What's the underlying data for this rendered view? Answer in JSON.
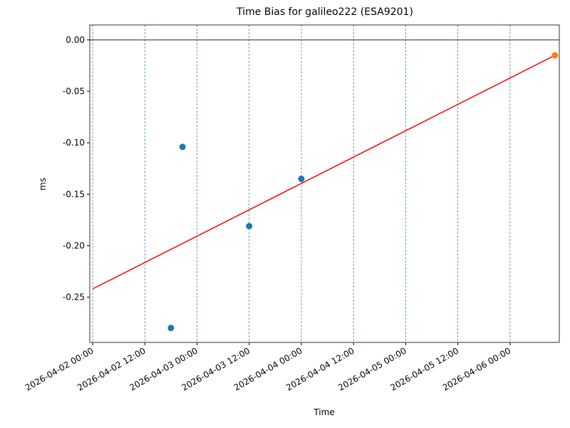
{
  "chart_data": {
    "type": "scatter",
    "title": "Time Bias for galileo222 (ESA9201)",
    "xlabel": "Time",
    "ylabel": "ms",
    "xlim": [
      "2026-04-01 23:20",
      "2026-04-06 11:20"
    ],
    "ylim": [
      -0.294,
      0.0145
    ],
    "xticks": [
      "2026-04-02 00:00",
      "2026-04-02 12:00",
      "2026-04-03 00:00",
      "2026-04-03 12:00",
      "2026-04-04 00:00",
      "2026-04-04 12:00",
      "2026-04-05 00:00",
      "2026-04-05 12:00",
      "2026-04-06 00:00"
    ],
    "yticks": [
      {
        "value": 0,
        "label": "0.00"
      },
      {
        "value": -0.05,
        "label": "-0.05"
      },
      {
        "value": -0.1,
        "label": "-0.10"
      },
      {
        "value": -0.15,
        "label": "-0.15"
      },
      {
        "value": -0.2,
        "label": "-0.20"
      },
      {
        "value": -0.25,
        "label": "-0.25"
      }
    ],
    "xgrid": true,
    "hline": 0,
    "series": [
      {
        "mode": "markers",
        "color": "#1f77b4",
        "x": [
          "2026-04-02 18:00",
          "2026-04-02 20:40",
          "2026-04-03 12:00",
          "2026-04-04 00:00"
        ],
        "values": [
          -0.28,
          -0.104,
          -0.181,
          -0.135
        ]
      },
      {
        "mode": "line",
        "color": "#ff0000",
        "x": [
          "2026-04-02 00:00",
          "2026-04-06 10:20"
        ],
        "values": [
          -0.242,
          -0.015
        ]
      },
      {
        "mode": "markers",
        "color": "#ff7f0e",
        "x": [
          "2026-04-06 10:20"
        ],
        "values": [
          -0.015
        ]
      }
    ]
  }
}
